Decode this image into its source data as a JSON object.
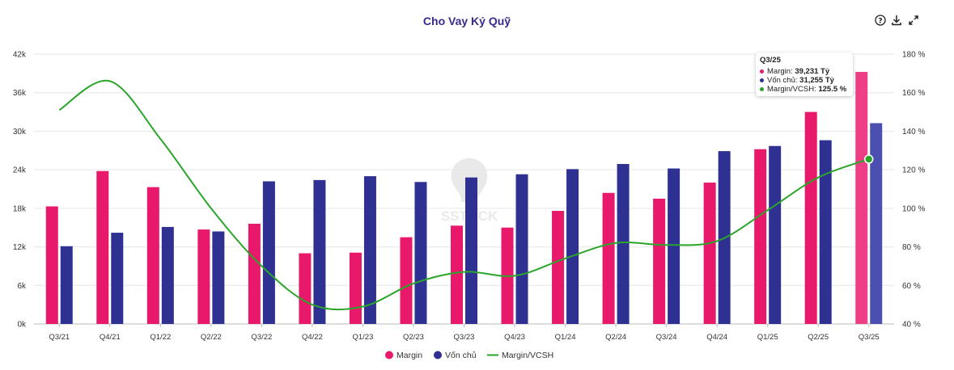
{
  "toolbar": {
    "icons": [
      "help-icon",
      "download-icon",
      "expand-icon"
    ]
  },
  "watermark": {
    "text": "SSTOCK"
  },
  "chart_data": {
    "type": "bar",
    "title": "Cho Vay Ký Quỹ",
    "categories": [
      "Q3/21",
      "Q4/21",
      "Q1/22",
      "Q2/22",
      "Q3/22",
      "Q4/22",
      "Q1/23",
      "Q2/23",
      "Q3/23",
      "Q4/23",
      "Q1/24",
      "Q2/24",
      "Q3/24",
      "Q4/24",
      "Q1/25",
      "Q2/25",
      "Q3/25"
    ],
    "series": [
      {
        "name": "Margin",
        "type": "bar",
        "axis": "left",
        "color": "#e8196b",
        "values": [
          18300,
          23800,
          21300,
          14700,
          15600,
          11000,
          11100,
          13500,
          15300,
          15000,
          17600,
          20400,
          19500,
          22000,
          27200,
          33000,
          39231
        ]
      },
      {
        "name": "Vốn chủ",
        "type": "bar",
        "axis": "left",
        "color": "#2e3192",
        "values": [
          12100,
          14200,
          15100,
          14400,
          22200,
          22400,
          23000,
          22100,
          22800,
          23300,
          24100,
          24900,
          24200,
          26900,
          27700,
          28600,
          31255
        ]
      },
      {
        "name": "Margin/VCSH",
        "type": "line",
        "axis": "right",
        "color": "#2aa52a",
        "values": [
          151,
          166,
          136,
          100,
          70,
          50,
          49,
          61,
          67,
          65,
          74,
          82,
          81,
          83,
          99,
          116,
          125.5
        ]
      }
    ],
    "y_left": {
      "ticks": [
        "0k",
        "6k",
        "12k",
        "18k",
        "24k",
        "30k",
        "36k",
        "42k"
      ],
      "range": [
        0,
        42000
      ]
    },
    "y_right": {
      "ticks": [
        "40 %",
        "60 %",
        "80 %",
        "100 %",
        "120 %",
        "140 %",
        "160 %",
        "180 %"
      ],
      "range": [
        40,
        180
      ]
    },
    "grid": true,
    "legend_position": "bottom",
    "tooltip": {
      "title": "Q3/25",
      "rows": [
        {
          "label": "Margin",
          "value": "39,231 Tỷ",
          "color": "#e8196b"
        },
        {
          "label": "Vốn chủ",
          "value": "31,255 Tỷ",
          "color": "#2e3192"
        },
        {
          "label": "Margin/VCSH",
          "value": "125.5 %",
          "color": "#2aa52a"
        }
      ]
    }
  }
}
